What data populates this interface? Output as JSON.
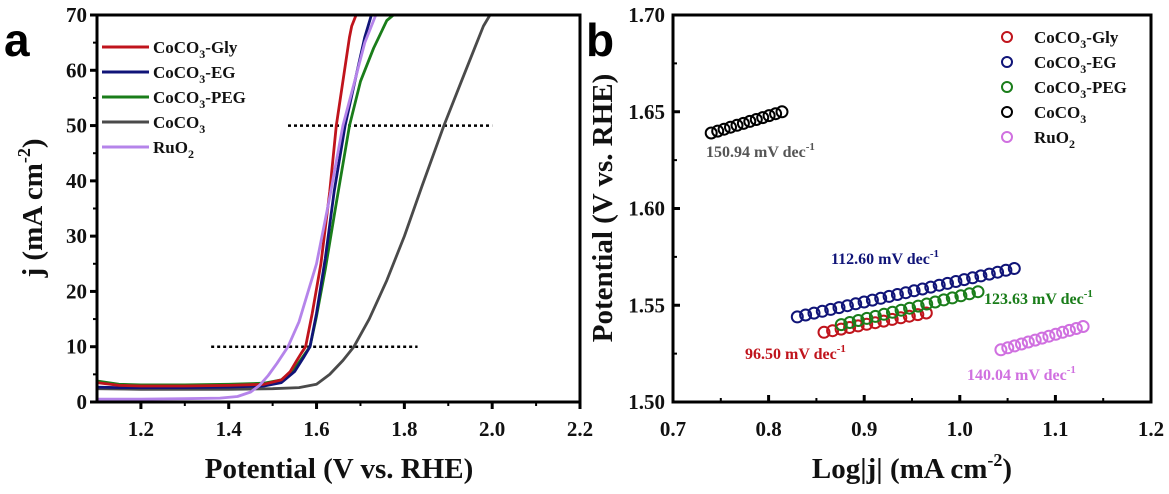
{
  "chart_data": [
    {
      "panel": "a",
      "type": "line",
      "title": "",
      "xlabel": "Potential (V vs. RHE)",
      "ylabel": "j (mA cm-2)",
      "xlim": [
        1.1,
        2.2
      ],
      "ylim": [
        0,
        70
      ],
      "xticks": [
        "1.2",
        "1.4",
        "1.6",
        "1.8",
        "2.0",
        "2.2"
      ],
      "xtick_values": [
        1.2,
        1.4,
        1.6,
        1.8,
        2.0,
        2.2
      ],
      "yticks": [
        "0",
        "10",
        "20",
        "30",
        "40",
        "50",
        "60",
        "70"
      ],
      "ytick_values": [
        0,
        10,
        20,
        30,
        40,
        50,
        60,
        70
      ],
      "legend_position": "top-left",
      "reference_lines": [
        {
          "y": 10,
          "x_range": [
            1.36,
            1.83
          ],
          "style": "dotted"
        },
        {
          "y": 50,
          "x_range": [
            1.535,
            2.0
          ],
          "style": "dotted"
        }
      ],
      "series": [
        {
          "name": "CoCO3-Gly",
          "color": "#c0141c",
          "x": [
            1.1,
            1.15,
            1.2,
            1.3,
            1.4,
            1.48,
            1.52,
            1.54,
            1.555,
            1.565,
            1.575,
            1.59,
            1.61,
            1.63,
            1.645,
            1.66,
            1.675,
            1.68,
            1.69
          ],
          "y": [
            3.5,
            3.0,
            2.9,
            2.9,
            3.0,
            3.2,
            4.0,
            5.5,
            7.5,
            8.8,
            10,
            16,
            25,
            38,
            50,
            58,
            66,
            68,
            70
          ]
        },
        {
          "name": "CoCO3-EG",
          "color": "#101478",
          "x": [
            1.1,
            1.15,
            1.2,
            1.3,
            1.4,
            1.48,
            1.52,
            1.55,
            1.57,
            1.585,
            1.6,
            1.62,
            1.64,
            1.665,
            1.69,
            1.71,
            1.725
          ],
          "y": [
            2.7,
            2.6,
            2.6,
            2.6,
            2.7,
            2.9,
            3.5,
            5.5,
            8.0,
            10,
            16,
            26,
            38,
            50,
            59,
            66,
            70
          ]
        },
        {
          "name": "CoCO3-PEG",
          "color": "#1a7d1a",
          "x": [
            1.1,
            1.15,
            1.2,
            1.3,
            1.4,
            1.48,
            1.52,
            1.55,
            1.57,
            1.585,
            1.6,
            1.62,
            1.645,
            1.675,
            1.7,
            1.73,
            1.76,
            1.775
          ],
          "y": [
            3.8,
            3.2,
            3.1,
            3.1,
            3.2,
            3.4,
            4.0,
            6.0,
            8.3,
            10,
            15.5,
            24,
            36,
            50,
            58,
            64,
            69,
            70
          ]
        },
        {
          "name": "CoCO3",
          "color": "#4a4a4a",
          "x": [
            1.1,
            1.2,
            1.3,
            1.4,
            1.5,
            1.56,
            1.6,
            1.63,
            1.66,
            1.685,
            1.72,
            1.76,
            1.8,
            1.84,
            1.89,
            1.93,
            1.96,
            1.98,
            1.995
          ],
          "y": [
            2.4,
            2.3,
            2.3,
            2.3,
            2.4,
            2.6,
            3.2,
            5.0,
            7.5,
            10,
            15,
            22,
            30,
            39,
            50,
            58,
            64,
            68,
            70
          ]
        },
        {
          "name": "RuO2",
          "color": "#b584ea",
          "x": [
            1.1,
            1.2,
            1.3,
            1.38,
            1.42,
            1.45,
            1.47,
            1.49,
            1.51,
            1.535,
            1.56,
            1.6,
            1.63,
            1.66,
            1.69,
            1.71,
            1.735
          ],
          "y": [
            0.5,
            0.5,
            0.6,
            0.7,
            1.0,
            1.8,
            3.0,
            4.8,
            7.0,
            10,
            14.5,
            25,
            37,
            50,
            59,
            65,
            70
          ]
        }
      ]
    },
    {
      "panel": "b",
      "type": "scatter",
      "title": "",
      "xlabel": "Log|j| (mA cm-2)",
      "ylabel": "Potential (V vs. RHE)",
      "xlim": [
        0.7,
        1.2
      ],
      "ylim": [
        1.5,
        1.7
      ],
      "xticks": [
        "0.7",
        "0.8",
        "0.9",
        "1.0",
        "1.1",
        "1.2"
      ],
      "xtick_values": [
        0.7,
        0.8,
        0.9,
        1.0,
        1.1,
        1.2
      ],
      "yticks": [
        "1.50",
        "1.55",
        "1.60",
        "1.65",
        "1.70"
      ],
      "ytick_values": [
        1.5,
        1.55,
        1.6,
        1.65,
        1.7
      ],
      "legend_position": "top-right",
      "marker": "open-circle",
      "series": [
        {
          "name": "CoCO3-Gly",
          "color": "#c0141c",
          "x_range": [
            0.858,
            0.965
          ],
          "y_range": [
            1.536,
            1.546
          ],
          "n_points": 13,
          "tafel_slope": "96.50 mV dec-1"
        },
        {
          "name": "CoCO3-EG",
          "color": "#101478",
          "x_range": [
            0.83,
            1.057
          ],
          "y_range": [
            1.544,
            1.569
          ],
          "n_points": 27,
          "tafel_slope": "112.60 mV dec-1"
        },
        {
          "name": "CoCO3-PEG",
          "color": "#1a7d1a",
          "x_range": [
            0.876,
            1.019
          ],
          "y_range": [
            1.54,
            1.557
          ],
          "n_points": 17,
          "tafel_slope": "123.63 mV dec-1"
        },
        {
          "name": "CoCO3",
          "color": "#000000",
          "x_range": [
            0.74,
            0.814
          ],
          "y_range": [
            1.639,
            1.65
          ],
          "n_points": 12,
          "tafel_slope": "150.94 mV dec-1"
        },
        {
          "name": "RuO2",
          "color": "#d070e0",
          "x_range": [
            1.043,
            1.129
          ],
          "y_range": [
            1.527,
            1.539
          ],
          "n_points": 13,
          "tafel_slope": "140.04 mV dec-1"
        }
      ],
      "annotations": [
        {
          "text": "150.94 mV dec",
          "sup": "-1",
          "color": "#555555",
          "series": "CoCO3"
        },
        {
          "text": "112.60 mV dec",
          "sup": "-1",
          "color": "#101478",
          "series": "CoCO3-EG"
        },
        {
          "text": "123.63 mV dec",
          "sup": "-1",
          "color": "#1a7d1a",
          "series": "CoCO3-PEG"
        },
        {
          "text": "96.50 mV dec",
          "sup": "-1",
          "color": "#c0141c",
          "series": "CoCO3-Gly"
        },
        {
          "text": "140.04 mV dec",
          "sup": "-1",
          "color": "#d070e0",
          "series": "RuO2"
        }
      ]
    }
  ],
  "panels": {
    "a": {
      "label": "a"
    },
    "b": {
      "label": "b"
    }
  },
  "legend_labels": [
    {
      "base": "CoCO",
      "sub": "3",
      "suffix": "-Gly"
    },
    {
      "base": "CoCO",
      "sub": "3",
      "suffix": "-EG"
    },
    {
      "base": "CoCO",
      "sub": "3",
      "suffix": "-PEG"
    },
    {
      "base": "CoCO",
      "sub": "3",
      "suffix": ""
    },
    {
      "base": "RuO",
      "sub": "2",
      "suffix": ""
    }
  ],
  "axis_titles": {
    "a_x": "Potential (V vs. RHE)",
    "a_y_main": "j (mA cm",
    "a_y_sup": "-2",
    "a_y_end": ")",
    "b_x_main": "Log|j| (mA cm",
    "b_x_sup": "-2",
    "b_x_end": ")",
    "b_y": "Potential (V vs. RHE)"
  }
}
